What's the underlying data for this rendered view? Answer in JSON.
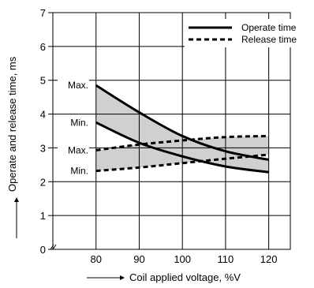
{
  "chart_data": {
    "type": "line",
    "xlabel": "Coil applied voltage, %V",
    "ylabel": "Operate and release time, ms",
    "xlim": [
      70,
      125
    ],
    "ylim": [
      0,
      7
    ],
    "xticks": [
      80,
      90,
      100,
      110,
      120
    ],
    "yticks": [
      0,
      1,
      2,
      3,
      4,
      5,
      6,
      7
    ],
    "grid": true,
    "legend_position": "top-right",
    "series": [
      {
        "name": "Operate time",
        "style": "solid",
        "x": [
          80,
          90,
          100,
          110,
          120
        ],
        "max": [
          4.85,
          4.05,
          3.35,
          2.9,
          2.65
        ],
        "min": [
          3.75,
          3.15,
          2.75,
          2.45,
          2.28
        ]
      },
      {
        "name": "Release time",
        "style": "dashed",
        "x": [
          80,
          90,
          100,
          110,
          120
        ],
        "max": [
          2.93,
          3.1,
          3.22,
          3.32,
          3.35
        ],
        "min": [
          2.32,
          2.42,
          2.55,
          2.68,
          2.8
        ]
      }
    ],
    "annotations": [
      "Max.",
      "Min.",
      "Max.",
      "Min."
    ],
    "fill_color": "#d0d0d0",
    "line_color": "#000000"
  }
}
